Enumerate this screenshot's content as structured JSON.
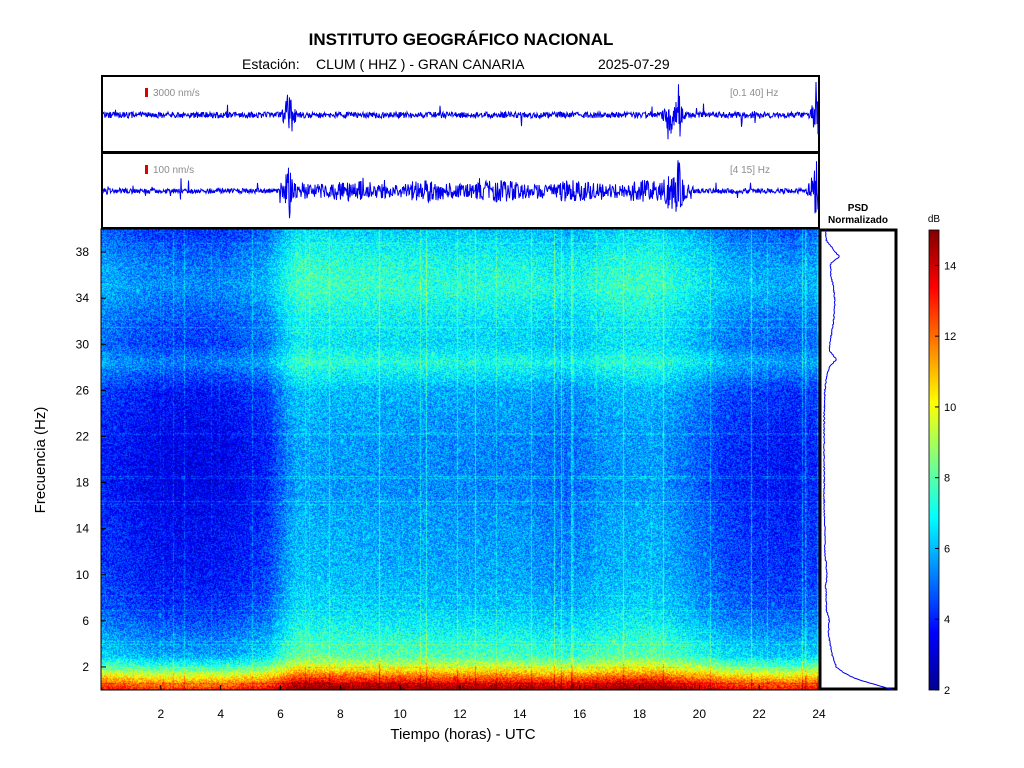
{
  "title": "INSTITUTO GEOGRÁFICO NACIONAL",
  "station_label": "Estación:",
  "station": "CLUM ( HHZ ) - GRAN CANARIA",
  "date": "2025-07-29",
  "trace1": {
    "scale_label": "3000 nm/s",
    "filter_label": "[0.1 40] Hz"
  },
  "trace2": {
    "scale_label": "100 nm/s",
    "filter_label": "[4 15] Hz"
  },
  "psd_title_line1": "PSD",
  "psd_title_line2": "Normalizado",
  "colorbar_unit": "dB",
  "colors": {
    "trace": "#0000ee",
    "scale_bar": "#dd0000",
    "colormap": [
      "#00008f",
      "#0000ff",
      "#0080ff",
      "#00ffff",
      "#80ff80",
      "#ffff00",
      "#ff8000",
      "#ff0000",
      "#800000"
    ]
  },
  "chart_data": {
    "type": "heatmap",
    "xlabel": "Tiempo (horas) - UTC",
    "ylabel": "Frecuencia (Hz)",
    "xlim": [
      0,
      24
    ],
    "ylim": [
      0,
      40
    ],
    "xticks": [
      2,
      4,
      6,
      8,
      10,
      12,
      14,
      16,
      18,
      20,
      22,
      24
    ],
    "yticks": [
      2,
      6,
      10,
      14,
      18,
      22,
      26,
      30,
      34,
      38
    ],
    "colorbar": {
      "label": "dB",
      "range": [
        2,
        15
      ],
      "ticks": [
        2,
        4,
        6,
        8,
        10,
        12,
        14
      ]
    },
    "grid": false,
    "mean_level_by_hour_db": {
      "hours": [
        0,
        2,
        4,
        5.5,
        6.5,
        9,
        12,
        14,
        15.5,
        17,
        18.5,
        19.5,
        21,
        23,
        24
      ],
      "level": [
        4.2,
        3.6,
        3.6,
        4.2,
        6.0,
        5.8,
        5.6,
        5.6,
        5.2,
        5.8,
        5.9,
        5.4,
        4.4,
        4.0,
        4.3
      ]
    },
    "band_profile_db": {
      "freq": [
        0,
        1,
        2,
        3,
        5,
        7,
        9,
        11,
        14,
        18,
        22,
        26,
        28.5,
        30,
        32,
        35,
        37.5,
        40
      ],
      "offset": [
        9.5,
        7.0,
        4.0,
        2.2,
        1.4,
        0.6,
        0.3,
        0.1,
        0.0,
        -0.3,
        -0.2,
        0.2,
        1.6,
        0.8,
        1.0,
        1.8,
        1.4,
        0.6
      ]
    },
    "psd_normalized": {
      "freq": [
        0,
        0.5,
        1,
        1.5,
        2,
        3,
        4,
        5,
        6,
        7,
        8,
        9,
        10,
        12,
        14,
        16,
        18,
        20,
        22,
        24,
        26,
        27,
        28,
        28.7,
        29.5,
        30.5,
        32,
        33.5,
        35,
        36,
        37,
        37.6,
        38.2,
        39,
        40
      ],
      "value": [
        1.0,
        0.72,
        0.46,
        0.3,
        0.2,
        0.14,
        0.11,
        0.09,
        0.1,
        0.06,
        0.06,
        0.05,
        0.07,
        0.04,
        0.04,
        0.03,
        0.03,
        0.03,
        0.03,
        0.03,
        0.04,
        0.06,
        0.1,
        0.2,
        0.1,
        0.12,
        0.16,
        0.18,
        0.16,
        0.12,
        0.12,
        0.24,
        0.16,
        0.06,
        0.05
      ]
    },
    "trace1_events_hours": [
      6.3,
      19.0,
      19.3,
      23.9
    ],
    "trace2_active_hours": [
      6.0,
      19.8
    ]
  }
}
